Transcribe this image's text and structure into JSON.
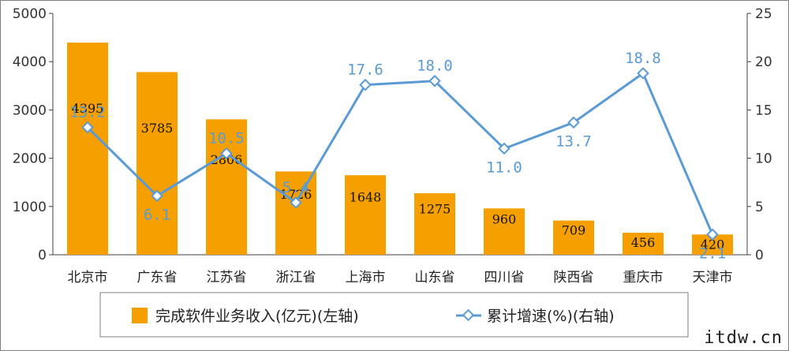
{
  "chart_data": {
    "type": "bar",
    "title": "",
    "categories": [
      "北京市",
      "广东省",
      "江苏省",
      "浙江省",
      "上海市",
      "山东省",
      "四川省",
      "陕西省",
      "重庆市",
      "天津市"
    ],
    "series": [
      {
        "name": "完成软件业务收入(亿元)(左轴)",
        "type": "bar",
        "axis": "left",
        "color": "#f5a000",
        "values": [
          4395,
          3785,
          2806,
          1726,
          1648,
          1275,
          960,
          709,
          456,
          420
        ],
        "labels": [
          "4395",
          "3785",
          "2806",
          "1726",
          "1648",
          "1275",
          "960",
          "709",
          "456",
          "420"
        ]
      },
      {
        "name": "累计增速(%)(右轴)",
        "type": "line",
        "axis": "right",
        "color": "#5b9bd5",
        "values": [
          13.2,
          6.1,
          10.5,
          5.4,
          17.6,
          18.0,
          11.0,
          13.7,
          18.8,
          2.1
        ],
        "labels": [
          "13.2",
          "6.1",
          "10.5",
          "5.4",
          "17.6",
          "18.0",
          "11.0",
          "13.7",
          "18.8",
          "2.1"
        ]
      }
    ],
    "y_left": {
      "min": 0,
      "max": 5000,
      "ticks": [
        "0",
        "1000",
        "2000",
        "3000",
        "4000",
        "5000"
      ]
    },
    "y_right": {
      "min": 0,
      "max": 25,
      "ticks": [
        "0",
        "5",
        "10",
        "15",
        "20",
        "25"
      ]
    },
    "grid": false,
    "legend": "bottom"
  },
  "watermark": "itdw.cn"
}
